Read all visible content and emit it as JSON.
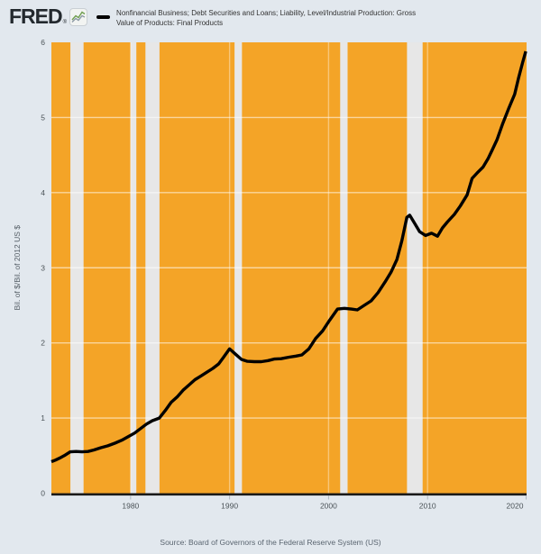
{
  "header": {
    "logo_text": "FRED",
    "registered_mark": "®",
    "logo_icon": "line-chart-icon",
    "series_title_lines": [
      "Nonfinancial Business; Debt Securities and Loans; Liability, Level/Industrial Production: Gross",
      "Value of Products: Final Products"
    ]
  },
  "footer": {
    "source": "Source: Board of Governors of the Federal Reserve System (US)"
  },
  "chart_data": {
    "type": "line",
    "title": "Nonfinancial Business; Debt Securities and Loans; Liability, Level/Industrial Production: Gross Value of Products: Final Products",
    "xlabel": "",
    "ylabel": "Bil. of $/Bil. of 2012 US $",
    "xlim": [
      1972,
      2020
    ],
    "ylim": [
      0,
      6
    ],
    "x_ticks": [
      1980,
      1990,
      2000,
      2010,
      2020
    ],
    "y_ticks": [
      0,
      1,
      2,
      3,
      4,
      5,
      6
    ],
    "grid": true,
    "legend_position": "top-left",
    "colors": {
      "page_bg": "#e2e8ee",
      "plot_bg": "#f4a427",
      "recession_band": "#e7e7e7",
      "line": "#000000",
      "axis_line": "#1a1a1a",
      "tick_label": "#4a5257",
      "gridline": "rgba(255,255,255,0.55)",
      "gridline_vertical": "rgba(255,255,255,0.38)"
    },
    "recession_bands": [
      [
        1973.92,
        1975.25
      ],
      [
        1980.0,
        1980.58
      ],
      [
        1981.5,
        1982.92
      ],
      [
        1990.5,
        1991.25
      ],
      [
        2001.17,
        2001.92
      ],
      [
        2007.92,
        2009.5
      ]
    ],
    "series": [
      {
        "name": "Nonfinancial Business; Debt Securities and Loans; Liability, Level/Industrial Production: Gross Value of Products: Final Products",
        "points": [
          [
            1972.0,
            0.42
          ],
          [
            1972.4,
            0.44
          ],
          [
            1972.8,
            0.465
          ],
          [
            1973.3,
            0.5
          ],
          [
            1973.9,
            0.55
          ],
          [
            1974.5,
            0.555
          ],
          [
            1975.1,
            0.55
          ],
          [
            1975.7,
            0.555
          ],
          [
            1976.3,
            0.575
          ],
          [
            1977.0,
            0.605
          ],
          [
            1977.7,
            0.63
          ],
          [
            1978.4,
            0.665
          ],
          [
            1979.1,
            0.705
          ],
          [
            1979.8,
            0.755
          ],
          [
            1980.4,
            0.8
          ],
          [
            1981.0,
            0.86
          ],
          [
            1981.6,
            0.92
          ],
          [
            1982.2,
            0.965
          ],
          [
            1982.9,
            1.0
          ],
          [
            1983.5,
            1.1
          ],
          [
            1984.1,
            1.21
          ],
          [
            1984.7,
            1.28
          ],
          [
            1985.3,
            1.37
          ],
          [
            1985.9,
            1.44
          ],
          [
            1986.5,
            1.51
          ],
          [
            1987.1,
            1.56
          ],
          [
            1987.7,
            1.61
          ],
          [
            1988.3,
            1.66
          ],
          [
            1988.9,
            1.72
          ],
          [
            1989.4,
            1.81
          ],
          [
            1990.0,
            1.92
          ],
          [
            1990.6,
            1.85
          ],
          [
            1991.2,
            1.78
          ],
          [
            1991.8,
            1.755
          ],
          [
            1992.5,
            1.75
          ],
          [
            1993.2,
            1.75
          ],
          [
            1993.9,
            1.765
          ],
          [
            1994.5,
            1.785
          ],
          [
            1995.2,
            1.79
          ],
          [
            1996.0,
            1.81
          ],
          [
            1996.7,
            1.825
          ],
          [
            1997.3,
            1.84
          ],
          [
            1998.0,
            1.92
          ],
          [
            1998.7,
            2.06
          ],
          [
            1999.4,
            2.16
          ],
          [
            2000.1,
            2.3
          ],
          [
            2000.9,
            2.45
          ],
          [
            2001.6,
            2.46
          ],
          [
            2002.3,
            2.45
          ],
          [
            2002.9,
            2.44
          ],
          [
            2003.6,
            2.5
          ],
          [
            2004.3,
            2.56
          ],
          [
            2005.0,
            2.67
          ],
          [
            2005.7,
            2.81
          ],
          [
            2006.3,
            2.94
          ],
          [
            2006.9,
            3.11
          ],
          [
            2007.4,
            3.36
          ],
          [
            2007.9,
            3.67
          ],
          [
            2008.2,
            3.7
          ],
          [
            2008.7,
            3.59
          ],
          [
            2009.2,
            3.48
          ],
          [
            2009.8,
            3.43
          ],
          [
            2010.4,
            3.46
          ],
          [
            2011.0,
            3.42
          ],
          [
            2011.5,
            3.53
          ],
          [
            2012.0,
            3.61
          ],
          [
            2012.7,
            3.71
          ],
          [
            2013.3,
            3.82
          ],
          [
            2014.0,
            3.97
          ],
          [
            2014.5,
            4.19
          ],
          [
            2015.0,
            4.26
          ],
          [
            2015.6,
            4.34
          ],
          [
            2016.1,
            4.45
          ],
          [
            2016.5,
            4.56
          ],
          [
            2017.0,
            4.7
          ],
          [
            2017.6,
            4.92
          ],
          [
            2018.2,
            5.12
          ],
          [
            2018.8,
            5.31
          ],
          [
            2019.2,
            5.53
          ],
          [
            2019.6,
            5.73
          ],
          [
            2019.92,
            5.88
          ]
        ]
      }
    ]
  }
}
